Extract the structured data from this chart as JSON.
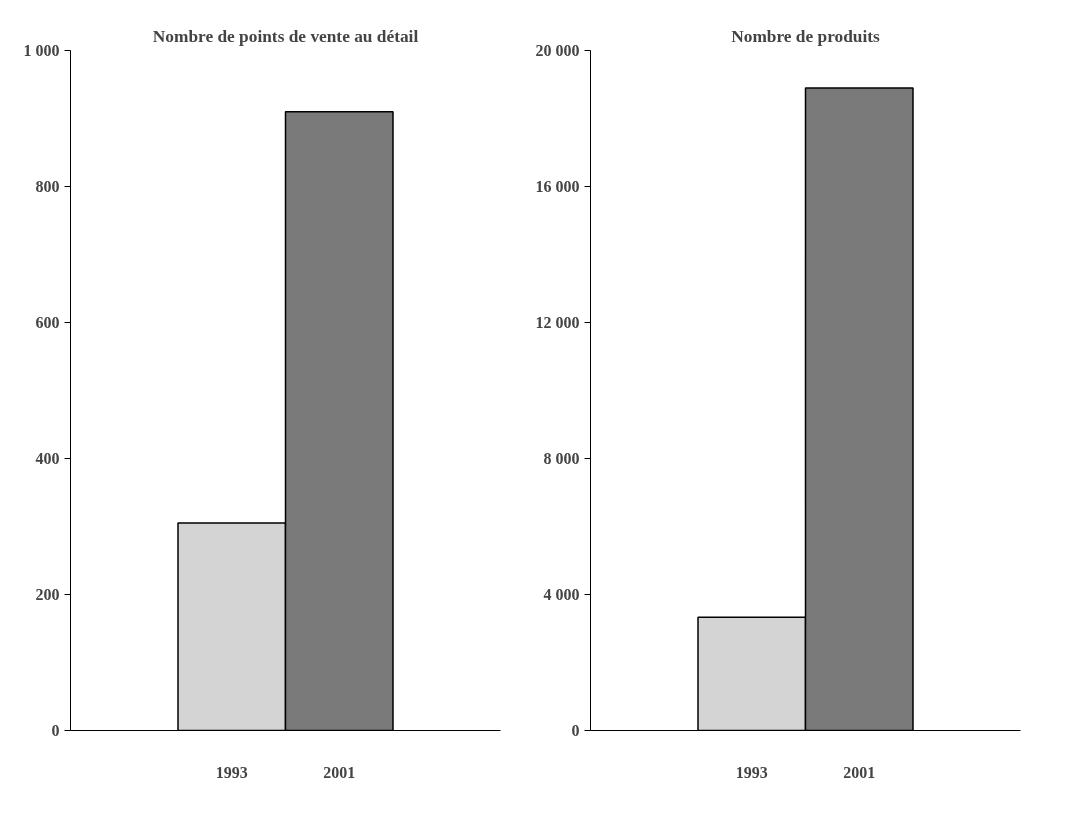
{
  "chart_data": [
    {
      "type": "bar",
      "title": "Nombre de points de vente au détail",
      "categories": [
        "1993",
        "2001"
      ],
      "values": [
        305,
        910
      ],
      "colors": [
        "#d4d4d4",
        "#7a7a7a"
      ],
      "ylim": [
        0,
        1000
      ],
      "yticks": [
        0,
        200,
        400,
        600,
        800,
        {
          "value": 1000,
          "label": "1 000"
        }
      ],
      "grid": false
    },
    {
      "type": "bar",
      "title": "Nombre de produits",
      "categories": [
        "1993",
        "2001"
      ],
      "values": [
        3330,
        18900
      ],
      "colors": [
        "#d4d4d4",
        "#7a7a7a"
      ],
      "ylim": [
        0,
        20000
      ],
      "yticks": [
        0,
        {
          "value": 4000,
          "label": "4 000"
        },
        {
          "value": 8000,
          "label": "8 000"
        },
        {
          "value": 12000,
          "label": "12 000"
        },
        {
          "value": 16000,
          "label": "16 000"
        },
        {
          "value": 20000,
          "label": "20 000"
        }
      ],
      "grid": false
    }
  ]
}
